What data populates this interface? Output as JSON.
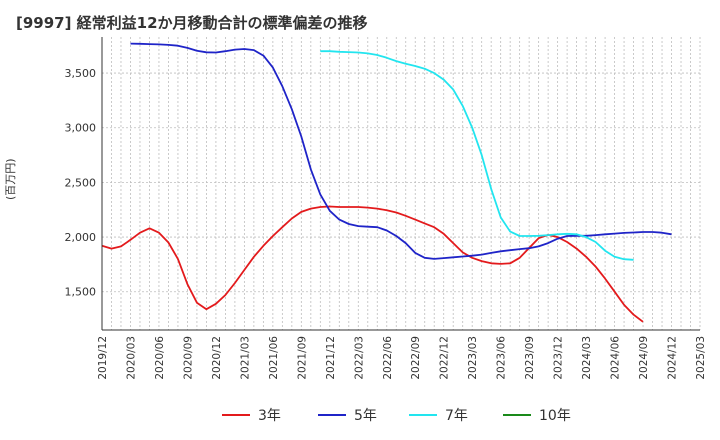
{
  "chart_data": {
    "type": "line",
    "title": "[9997]  経常利益12か月移動合計の標準偏差の推移",
    "ylabel": "(百万円)",
    "xlabel": "",
    "ylim": [
      1150,
      3830
    ],
    "yticks": [
      1500,
      2000,
      2500,
      3000,
      3500
    ],
    "ytick_labels": [
      "1,500",
      "2,000",
      "2,500",
      "3,000",
      "3,500"
    ],
    "xtick_labels": [
      "2019/12",
      "2020/03",
      "2020/06",
      "2020/09",
      "2020/12",
      "2021/03",
      "2021/06",
      "2021/09",
      "2021/12",
      "2022/03",
      "2022/06",
      "2022/09",
      "2022/12",
      "2023/03",
      "2023/06",
      "2023/09",
      "2023/12",
      "2024/03",
      "2024/06",
      "2024/09",
      "2024/12",
      "2025/03"
    ],
    "x_start": "2019/12",
    "months_total": 63,
    "grid": true,
    "legend_position": "bottom",
    "series": [
      {
        "name": "3年",
        "color": "#e31a1c",
        "start_offset": 0,
        "values": [
          1920,
          1895,
          1915,
          1975,
          2040,
          2080,
          2040,
          1950,
          1800,
          1570,
          1400,
          1340,
          1390,
          1470,
          1580,
          1700,
          1820,
          1920,
          2010,
          2090,
          2170,
          2230,
          2260,
          2275,
          2280,
          2275,
          2275,
          2275,
          2270,
          2260,
          2245,
          2225,
          2195,
          2160,
          2125,
          2090,
          2030,
          1945,
          1860,
          1810,
          1780,
          1760,
          1755,
          1760,
          1810,
          1900,
          1990,
          2020,
          2000,
          1955,
          1895,
          1820,
          1730,
          1620,
          1500,
          1380,
          1290,
          1225
        ]
      },
      {
        "name": "5年",
        "color": "#1f24c8",
        "start_offset": 3,
        "values": [
          3770,
          3768,
          3765,
          3762,
          3758,
          3750,
          3730,
          3705,
          3690,
          3688,
          3700,
          3715,
          3720,
          3710,
          3660,
          3550,
          3380,
          3170,
          2920,
          2620,
          2390,
          2240,
          2160,
          2120,
          2100,
          2095,
          2090,
          2060,
          2010,
          1945,
          1855,
          1810,
          1800,
          1808,
          1815,
          1822,
          1830,
          1840,
          1855,
          1870,
          1880,
          1890,
          1898,
          1915,
          1945,
          1985,
          2010,
          2012,
          2012,
          2018,
          2025,
          2032,
          2038,
          2042,
          2046,
          2046,
          2040,
          2025
        ]
      },
      {
        "name": "7年",
        "color": "#22e5ef",
        "start_offset": 23,
        "values": [
          3700,
          3700,
          3695,
          3692,
          3688,
          3680,
          3665,
          3640,
          3610,
          3585,
          3565,
          3540,
          3500,
          3440,
          3350,
          3200,
          3000,
          2750,
          2440,
          2180,
          2050,
          2010,
          2010,
          2012,
          2018,
          2025,
          2030,
          2025,
          2000,
          1955,
          1875,
          1820,
          1798,
          1792
        ]
      },
      {
        "name": "10年",
        "color": "#1a8a1a",
        "start_offset": 0,
        "values": []
      }
    ]
  }
}
